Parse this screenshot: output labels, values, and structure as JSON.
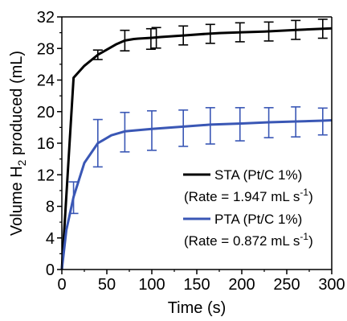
{
  "chart_data": {
    "type": "line",
    "title": "",
    "xlabel": "Time (s)",
    "ylabel_parts": [
      "Volume H",
      "2",
      " produced (mL)"
    ],
    "xlim": [
      0,
      300
    ],
    "ylim": [
      0,
      32
    ],
    "x_ticks": [
      0,
      50,
      100,
      150,
      200,
      250,
      300
    ],
    "y_ticks": [
      0,
      4,
      8,
      12,
      16,
      20,
      24,
      28,
      32
    ],
    "grid": false,
    "legend_placement": "right",
    "series": [
      {
        "name": "STA (Pt/C 1%)",
        "rate_label": "(Rate = 1.947 mL s",
        "rate_sup": "-1",
        "rate_close": ")",
        "color": "#000000",
        "x": [
          0,
          13,
          25,
          40,
          60,
          70,
          80,
          85,
          100,
          110,
          135,
          160,
          175,
          200,
          225,
          260,
          290,
          300
        ],
        "y": [
          0,
          24.3,
          25.8,
          27.2,
          28.5,
          29.0,
          29.2,
          29.25,
          29.35,
          29.45,
          29.65,
          29.85,
          29.95,
          30.05,
          30.15,
          30.35,
          30.5,
          30.55
        ],
        "error_x": [
          40,
          70,
          99,
          105,
          135,
          165,
          198,
          230,
          260,
          290
        ],
        "error_y": [
          27.2,
          29.0,
          29.2,
          29.35,
          29.65,
          29.85,
          30.05,
          30.15,
          30.35,
          30.5
        ],
        "error_err": [
          0.6,
          1.3,
          1.3,
          1.3,
          1.2,
          1.2,
          1.2,
          1.2,
          1.2,
          1.2
        ]
      },
      {
        "name": "PTA (Pt/C 1%)",
        "rate_label": "(Rate = 0.872 mL s",
        "rate_sup": "-1",
        "rate_close": ")",
        "color": "#3a57b5",
        "x": [
          0,
          5,
          13,
          25,
          40,
          55,
          70,
          100,
          135,
          165,
          200,
          230,
          260,
          290,
          300
        ],
        "y": [
          0,
          5,
          9.2,
          13.5,
          16.0,
          17.0,
          17.5,
          17.8,
          18.1,
          18.35,
          18.5,
          18.65,
          18.75,
          18.85,
          18.9
        ],
        "error_x": [
          13,
          40,
          70,
          100,
          135,
          165,
          198,
          230,
          260,
          290
        ],
        "error_y": [
          9.1,
          16.0,
          17.4,
          17.6,
          17.9,
          18.2,
          18.4,
          18.6,
          18.7,
          18.75
        ],
        "error_err": [
          2.0,
          3.0,
          2.5,
          2.5,
          2.3,
          2.3,
          2.1,
          1.9,
          1.9,
          1.7
        ]
      }
    ]
  }
}
